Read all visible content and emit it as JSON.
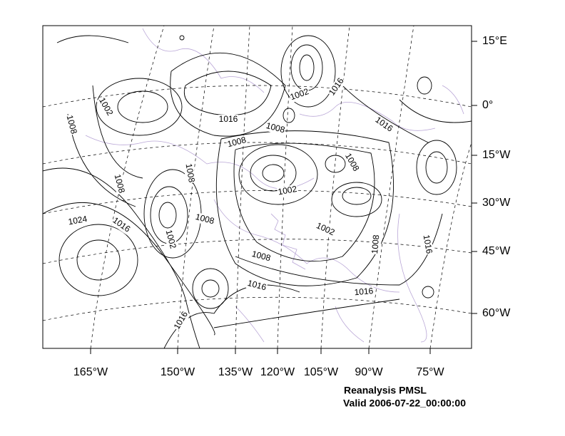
{
  "map": {
    "lat_labels": [
      "15°E",
      "0°",
      "15°W",
      "30°W",
      "45°W",
      "60°W"
    ],
    "lon_labels": [
      "165°W",
      "150°W",
      "135°W",
      "120°W",
      "105°W",
      "90°W",
      "75°W"
    ],
    "contour_labels": [
      "1002",
      "1008",
      "1016",
      "1008",
      "1002",
      "1016",
      "1016",
      "1008",
      "1008",
      "1008",
      "1008",
      "1002",
      "1024",
      "1016",
      "1008",
      "1002",
      "1002",
      "1008",
      "1016",
      "1008",
      "1016",
      "1016",
      "1016"
    ],
    "caption": {
      "title": "Reanalysis PMSL",
      "valid": "Valid 2006-07-22_00:00:00"
    }
  }
}
